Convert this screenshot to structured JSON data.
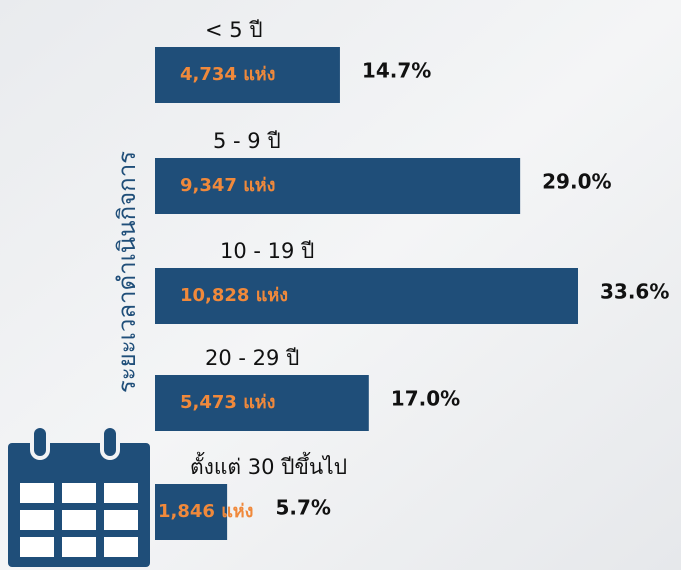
{
  "chart_data": {
    "type": "bar",
    "orientation": "horizontal",
    "y_axis_label": "ระยะเวลาดำเนินกิจการ",
    "categories": [
      "< 5 ปี",
      "5 - 9 ปี",
      "10 - 19 ปี",
      "20 - 29 ปี",
      "ตั้งแต่ 30 ปีขึ้นไป"
    ],
    "values": [
      4734,
      9347,
      10828,
      5473,
      1846
    ],
    "value_labels": [
      "4,734 แห่ง",
      "9,347 แห่ง",
      "10,828 แห่ง",
      "5,473 แห่ง",
      "1,846 แห่ง"
    ],
    "percent_values": [
      14.7,
      29.0,
      33.6,
      17.0,
      5.7
    ],
    "percent_labels": [
      "14.7%",
      "29.0%",
      "33.6%",
      "17.0%",
      "5.7%"
    ],
    "color": "#1f4e79",
    "value_label_color": "#f0893b"
  }
}
